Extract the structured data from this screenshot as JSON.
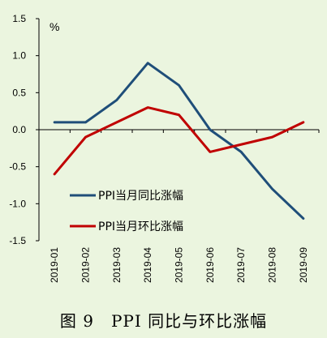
{
  "caption": "图 9　PPI 同比与环比涨幅",
  "chart_data": {
    "type": "line",
    "unit_label": "%",
    "categories": [
      "2019-01",
      "2019-02",
      "2019-03",
      "2019-04",
      "2019-05",
      "2019-06",
      "2019-07",
      "2019-08",
      "2019-09"
    ],
    "series": [
      {
        "name": "PPI当月同比涨幅",
        "color": "#1F4E79",
        "values": [
          0.1,
          0.1,
          0.4,
          0.9,
          0.6,
          0.0,
          -0.3,
          -0.8,
          -1.2
        ]
      },
      {
        "name": "PPI当月环比涨幅",
        "color": "#C00000",
        "values": [
          -0.6,
          -0.1,
          0.1,
          0.3,
          0.2,
          -0.3,
          -0.2,
          -0.1,
          0.1
        ]
      }
    ],
    "ylim": [
      -1.5,
      1.5
    ],
    "yticks": [
      "1.5",
      "1.0",
      "0.5",
      "0.0",
      "-0.5",
      "-1.0",
      "-1.5"
    ],
    "ytick_values": [
      1.5,
      1.0,
      0.5,
      0.0,
      -0.5,
      -1.0,
      -1.5
    ],
    "legend_position": "lower-left",
    "grid": false
  }
}
